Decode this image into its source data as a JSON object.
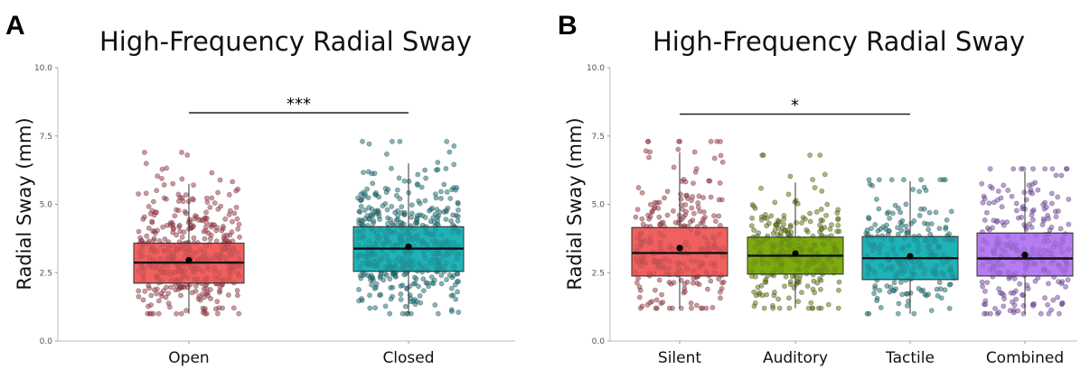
{
  "chart_data": [
    {
      "panel": "A",
      "type": "box",
      "title": "High-Frequency Radial Sway",
      "ylabel": "Radial Sway (mm)",
      "xlabel": "",
      "ylim": [
        0,
        10
      ],
      "yticks": [
        "0.0",
        "2.5",
        "5.0",
        "7.5",
        "10.0"
      ],
      "grid": false,
      "legend": "none",
      "categories": [
        "Open",
        "Closed"
      ],
      "colors": [
        "#f0605e",
        "#1fb3b8"
      ],
      "point_colors": [
        "#a9404d",
        "#16787f"
      ],
      "boxes": [
        {
          "name": "Open",
          "q1": 2.12,
          "median": 2.87,
          "q3": 3.58,
          "whisker_low": 1.0,
          "whisker_high": 5.75,
          "mean": 2.95,
          "n": 420,
          "range": [
            1.0,
            6.9
          ]
        },
        {
          "name": "Closed",
          "q1": 2.55,
          "median": 3.38,
          "q3": 4.18,
          "whisker_low": 1.0,
          "whisker_high": 6.5,
          "mean": 3.45,
          "n": 480,
          "range": [
            1.0,
            7.3
          ]
        }
      ],
      "significance": [
        {
          "from": "Open",
          "to": "Closed",
          "y": 8.35,
          "label": "***"
        }
      ]
    },
    {
      "panel": "B",
      "type": "box",
      "title": "High-Frequency Radial Sway",
      "ylabel": "Radial Sway (mm)",
      "xlabel": "",
      "ylim": [
        0,
        10
      ],
      "yticks": [
        "0.0",
        "2.5",
        "5.0",
        "7.5",
        "10.0"
      ],
      "grid": false,
      "legend": "none",
      "categories": [
        "Silent",
        "Auditory",
        "Tactile",
        "Combined"
      ],
      "colors": [
        "#f0605e",
        "#7cab10",
        "#1fb3b8",
        "#b57cf2"
      ],
      "point_colors": [
        "#a9404d",
        "#5c7e0c",
        "#16787f",
        "#7f4fb8"
      ],
      "boxes": [
        {
          "name": "Silent",
          "q1": 2.38,
          "median": 3.22,
          "q3": 4.15,
          "whisker_low": 1.2,
          "whisker_high": 6.9,
          "mean": 3.4,
          "n": 260,
          "range": [
            1.2,
            7.3
          ]
        },
        {
          "name": "Auditory",
          "q1": 2.45,
          "median": 3.12,
          "q3": 3.8,
          "whisker_low": 1.2,
          "whisker_high": 5.8,
          "mean": 3.2,
          "n": 260,
          "range": [
            1.2,
            6.8
          ]
        },
        {
          "name": "Tactile",
          "q1": 2.25,
          "median": 3.03,
          "q3": 3.82,
          "whisker_low": 1.0,
          "whisker_high": 5.85,
          "mean": 3.1,
          "n": 230,
          "range": [
            1.0,
            5.9
          ]
        },
        {
          "name": "Combined",
          "q1": 2.38,
          "median": 3.02,
          "q3": 3.95,
          "whisker_low": 1.0,
          "whisker_high": 6.2,
          "mean": 3.15,
          "n": 250,
          "range": [
            1.0,
            6.3
          ]
        }
      ],
      "significance": [
        {
          "from": "Silent",
          "to": "Tactile",
          "y": 8.3,
          "label": "*"
        }
      ]
    }
  ]
}
